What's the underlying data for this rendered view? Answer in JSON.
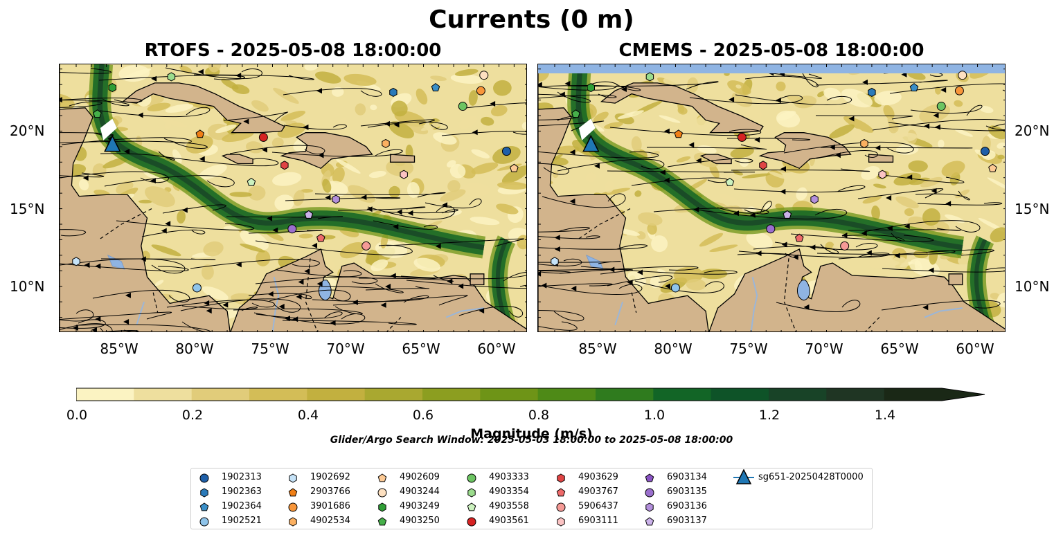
{
  "figure": {
    "title": "Currents (0 m)",
    "panels": [
      {
        "title": "RTOFS - 2025-05-08 18:00:00"
      },
      {
        "title": "CMEMS - 2025-05-08 18:00:00"
      }
    ],
    "lat_ticks": [
      "20°N",
      "15°N",
      "10°N"
    ],
    "lon_ticks": [
      "85°W",
      "80°W",
      "75°W",
      "70°W",
      "65°W",
      "60°W"
    ],
    "colorbar": {
      "label": "Magnitude (m/s)",
      "ticks": [
        "0.0",
        "0.2",
        "0.4",
        "0.6",
        "0.8",
        "1.0",
        "1.2",
        "1.4"
      ],
      "min": 0.0,
      "max": 1.5,
      "step": 0.1,
      "extend": "max",
      "colors": [
        "#fbf3c2",
        "#eedf9e",
        "#e1cc7a",
        "#d3bd57",
        "#c2b03f",
        "#a9a830",
        "#8c9e20",
        "#6e9417",
        "#4e8a17",
        "#2f7b1e",
        "#126526",
        "#0e5328",
        "#184327",
        "#1f3523",
        "#1a2816"
      ]
    },
    "search_window": "Glider/Argo Search Window: 2025-05-03 18:00:00 to 2025-05-08 18:00:00",
    "colors": {
      "land": "#d2b48c",
      "water_feature": "#8fb4e3",
      "lake": "#8fb4e3"
    }
  },
  "legend": {
    "items": [
      {
        "label": "1902313",
        "marker": "circle",
        "color": "#1f5fa8"
      },
      {
        "label": "1902363",
        "marker": "hexagon",
        "color": "#2a7ab9"
      },
      {
        "label": "1902364",
        "marker": "pentagon",
        "color": "#3a8fc8"
      },
      {
        "label": "1902521",
        "marker": "circle",
        "color": "#8fc4ea"
      },
      {
        "label": "1902692",
        "marker": "hexagon",
        "color": "#c6e3f8"
      },
      {
        "label": "2903766",
        "marker": "pentagon",
        "color": "#f07f16"
      },
      {
        "label": "3901686",
        "marker": "circle",
        "color": "#f8963a"
      },
      {
        "label": "4902534",
        "marker": "hexagon",
        "color": "#fbb061"
      },
      {
        "label": "4902609",
        "marker": "pentagon",
        "color": "#fdca95"
      },
      {
        "label": "4903244",
        "marker": "circle",
        "color": "#fde0c0"
      },
      {
        "label": "4903249",
        "marker": "hexagon",
        "color": "#2f9e36"
      },
      {
        "label": "4903250",
        "marker": "pentagon",
        "color": "#46b04a"
      },
      {
        "label": "4903333",
        "marker": "circle",
        "color": "#6cc462"
      },
      {
        "label": "4903354",
        "marker": "hexagon",
        "color": "#9bdc8d"
      },
      {
        "label": "4903558",
        "marker": "pentagon",
        "color": "#ccf2bf"
      },
      {
        "label": "4903561",
        "marker": "circle",
        "color": "#d62222"
      },
      {
        "label": "4903629",
        "marker": "hexagon",
        "color": "#e04444"
      },
      {
        "label": "4903767",
        "marker": "pentagon",
        "color": "#ee6a6a"
      },
      {
        "label": "5906437",
        "marker": "circle",
        "color": "#f59a96"
      },
      {
        "label": "6903111",
        "marker": "hexagon",
        "color": "#fbc3c3"
      },
      {
        "label": "6903134",
        "marker": "pentagon",
        "color": "#8a53c4"
      },
      {
        "label": "6903135",
        "marker": "circle",
        "color": "#9a6fcd"
      },
      {
        "label": "6903136",
        "marker": "hexagon",
        "color": "#b38fdc"
      },
      {
        "label": "6903137",
        "marker": "pentagon",
        "color": "#cbb2ea"
      },
      {
        "label": "sg651-20250428T0000",
        "marker": "triangle",
        "color": "#1f77b4"
      }
    ]
  },
  "markers": [
    {
      "id": "1902313",
      "lon": -59.5,
      "lat": 18.7
    },
    {
      "id": "1902363",
      "lon": -67.0,
      "lat": 22.5
    },
    {
      "id": "1902364",
      "lon": -64.2,
      "lat": 22.8
    },
    {
      "id": "1902521",
      "lon": -80.0,
      "lat": 9.9
    },
    {
      "id": "1902692",
      "lon": -88.0,
      "lat": 11.6
    },
    {
      "id": "2903766",
      "lon": -79.8,
      "lat": 19.8
    },
    {
      "id": "3901686",
      "lon": -61.2,
      "lat": 22.6
    },
    {
      "id": "4902534",
      "lon": -67.5,
      "lat": 19.2
    },
    {
      "id": "4902609",
      "lon": -59.0,
      "lat": 17.6
    },
    {
      "id": "4903244",
      "lon": -61.0,
      "lat": 23.6
    },
    {
      "id": "4903249",
      "lon": -85.6,
      "lat": 22.8
    },
    {
      "id": "4903250",
      "lon": -86.6,
      "lat": 21.1
    },
    {
      "id": "4903333",
      "lon": -62.4,
      "lat": 21.6
    },
    {
      "id": "4903354",
      "lon": -81.7,
      "lat": 23.5
    },
    {
      "id": "4903558",
      "lon": -76.4,
      "lat": 16.7
    },
    {
      "id": "4903561",
      "lon": -75.6,
      "lat": 19.6
    },
    {
      "id": "4903629",
      "lon": -74.2,
      "lat": 17.8
    },
    {
      "id": "4903767",
      "lon": -71.8,
      "lat": 13.1
    },
    {
      "id": "5906437",
      "lon": -68.8,
      "lat": 12.6
    },
    {
      "id": "6903111",
      "lon": -66.3,
      "lat": 17.2
    },
    {
      "id": "6903134",
      "lon": -72.6,
      "lat": 14.6
    },
    {
      "id": "6903135",
      "lon": -73.7,
      "lat": 13.7
    },
    {
      "id": "6903136",
      "lon": -70.8,
      "lat": 15.6
    },
    {
      "id": "6903137",
      "lon": -72.6,
      "lat": 14.6
    },
    {
      "id": "sg651-20250428T0000",
      "lon": -85.6,
      "lat": 19.1
    }
  ]
}
